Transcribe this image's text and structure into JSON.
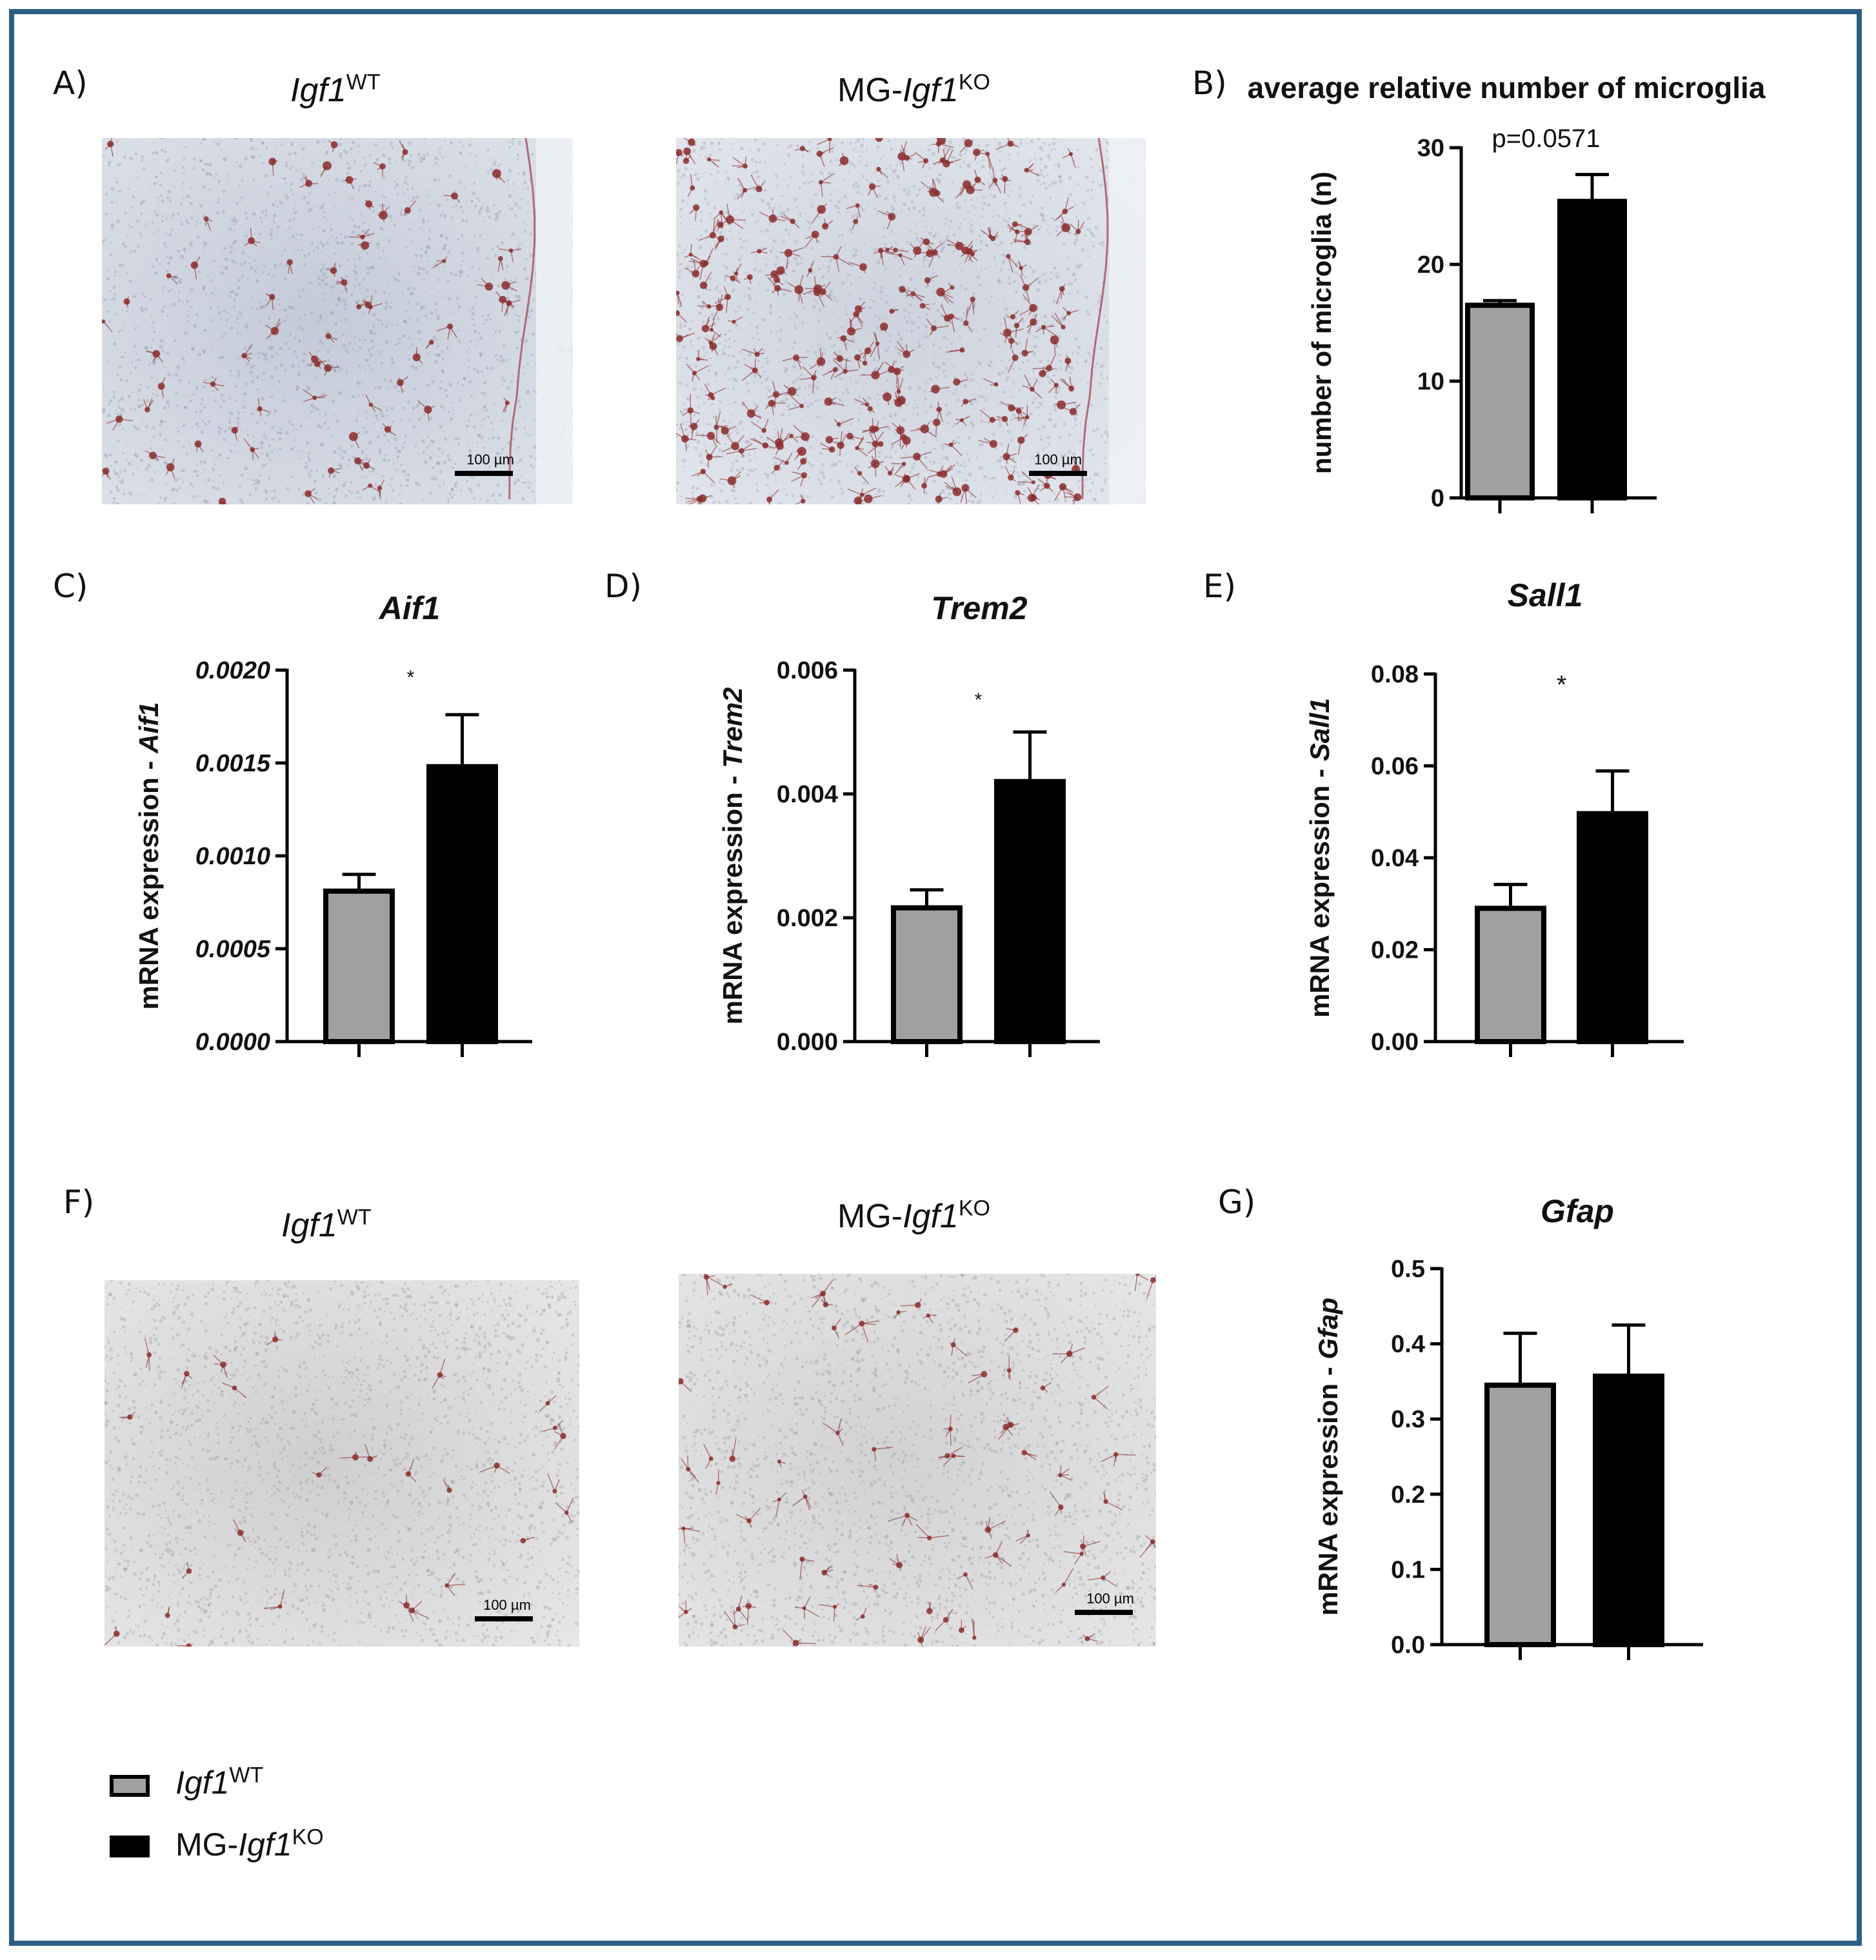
{
  "panels": {
    "A": "A)",
    "B": "B)",
    "C": "C)",
    "D": "D)",
    "E": "E)",
    "F": "F)",
    "G": "G)"
  },
  "conditions": {
    "wt": {
      "base": "Igf1",
      "sup": "WT"
    },
    "ko": {
      "prefix": "MG-",
      "base": "Igf1",
      "sup": "KO"
    }
  },
  "scale_bar_label": "100 µm",
  "colors": {
    "wt_bar": "#a0a0a3",
    "ko_bar": "#000000",
    "frame": "#2c5f86",
    "stain": "#8c2d2d"
  },
  "legend": [
    {
      "color": "#a0a0a3",
      "base": "Igf1",
      "sup": "WT"
    },
    {
      "color": "#000000",
      "prefix": "MG-",
      "base": "Igf1",
      "sup": "KO"
    }
  ],
  "chart_data": [
    {
      "id": "B",
      "type": "bar",
      "title": "average relative number of microglia",
      "title_italic": false,
      "ylabel": "number of microglia (n)",
      "ylim": [
        0,
        30
      ],
      "yticks": [
        "0",
        "10",
        "20",
        "30"
      ],
      "tick_values": [
        0,
        10,
        20,
        30
      ],
      "italic_ticks": false,
      "values": [
        16.5,
        25.4
      ],
      "errors": [
        0.4,
        2.3
      ],
      "annotation": "p=0.0571"
    },
    {
      "id": "C",
      "type": "bar",
      "title": "Aif1",
      "title_italic": true,
      "ylabel_prefix": "mRNA expression - ",
      "ylabel_gene": "Aif1",
      "ylim": [
        0,
        0.002
      ],
      "yticks": [
        "0.0000",
        "0.0005",
        "0.0010",
        "0.0015",
        "0.0020"
      ],
      "tick_values": [
        0,
        0.0005,
        0.001,
        0.0015,
        0.002
      ],
      "italic_ticks": true,
      "values": [
        0.00081,
        0.00148
      ],
      "errors": [
        9e-05,
        0.00028
      ],
      "annotation": "*"
    },
    {
      "id": "D",
      "type": "bar",
      "title": "Trem2",
      "title_italic": true,
      "ylabel_prefix": "mRNA expression - ",
      "ylabel_gene": "Trem2",
      "ylim": [
        0,
        0.006
      ],
      "yticks": [
        "0.000",
        "0.002",
        "0.004",
        "0.006"
      ],
      "tick_values": [
        0,
        0.002,
        0.004,
        0.006
      ],
      "italic_ticks": false,
      "values": [
        0.00216,
        0.0042
      ],
      "errors": [
        0.00029,
        0.0008
      ],
      "annotation": "*"
    },
    {
      "id": "E",
      "type": "bar",
      "title": "Sall1",
      "title_italic": true,
      "ylabel_prefix": "mRNA expression - ",
      "ylabel_gene": "Sall1",
      "ylim": [
        0,
        0.08
      ],
      "yticks": [
        "0.00",
        "0.02",
        "0.04",
        "0.06",
        "0.08"
      ],
      "tick_values": [
        0,
        0.02,
        0.04,
        0.06,
        0.08
      ],
      "italic_ticks": false,
      "values": [
        0.029,
        0.0496
      ],
      "errors": [
        0.0052,
        0.0093
      ],
      "annotation": "*"
    },
    {
      "id": "G",
      "type": "bar",
      "title": "Gfap",
      "title_italic": true,
      "ylabel_prefix": "mRNA expression - ",
      "ylabel_gene": "Gfap",
      "ylim": [
        0,
        0.5
      ],
      "yticks": [
        "0.0",
        "0.1",
        "0.2",
        "0.3",
        "0.4",
        "0.5"
      ],
      "tick_values": [
        0,
        0.1,
        0.2,
        0.3,
        0.4,
        0.5
      ],
      "italic_ticks": false,
      "values": [
        0.345,
        0.357
      ],
      "errors": [
        0.069,
        0.068
      ],
      "annotation": ""
    }
  ]
}
